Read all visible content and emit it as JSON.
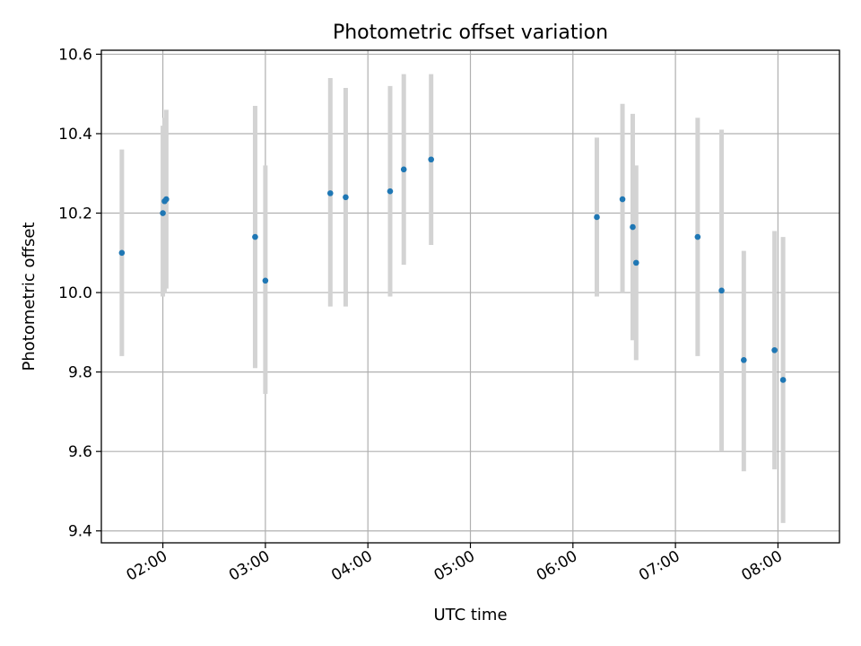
{
  "chart_data": {
    "type": "scatter",
    "title": "Photometric offset variation",
    "xlabel": "UTC time",
    "ylabel": "Photometric offset",
    "x_unit": "UTC time (HH:MM)",
    "xlim": [
      "01:24",
      "08:36"
    ],
    "ylim": [
      9.37,
      10.61
    ],
    "grid": true,
    "error_bars": true,
    "errorbar_color": "#d3d3d3",
    "point_color": "#1f77b4",
    "x_ticks": [
      "02:00",
      "03:00",
      "04:00",
      "05:00",
      "06:00",
      "07:00",
      "08:00"
    ],
    "y_ticks": [
      "9.4",
      "9.6",
      "9.8",
      "10.0",
      "10.2",
      "10.4",
      "10.6"
    ],
    "points": [
      {
        "x": "01:36",
        "y": 10.1,
        "ylo": 9.84,
        "yhi": 10.36
      },
      {
        "x": "02:00",
        "y": 10.2,
        "ylo": 9.99,
        "yhi": 10.42
      },
      {
        "x": "02:01",
        "y": 10.23,
        "ylo": 10.0,
        "yhi": 10.44
      },
      {
        "x": "02:02",
        "y": 10.235,
        "ylo": 10.01,
        "yhi": 10.46
      },
      {
        "x": "02:54",
        "y": 10.14,
        "ylo": 9.81,
        "yhi": 10.47
      },
      {
        "x": "03:00",
        "y": 10.03,
        "ylo": 9.745,
        "yhi": 10.32
      },
      {
        "x": "03:38",
        "y": 10.25,
        "ylo": 9.965,
        "yhi": 10.54
      },
      {
        "x": "03:47",
        "y": 10.24,
        "ylo": 9.965,
        "yhi": 10.515
      },
      {
        "x": "04:13",
        "y": 10.255,
        "ylo": 9.99,
        "yhi": 10.52
      },
      {
        "x": "04:21",
        "y": 10.31,
        "ylo": 10.07,
        "yhi": 10.55
      },
      {
        "x": "04:37",
        "y": 10.335,
        "ylo": 10.12,
        "yhi": 10.55
      },
      {
        "x": "06:14",
        "y": 10.19,
        "ylo": 9.99,
        "yhi": 10.39
      },
      {
        "x": "06:29",
        "y": 10.235,
        "ylo": 10.0,
        "yhi": 10.475
      },
      {
        "x": "06:35",
        "y": 10.165,
        "ylo": 9.88,
        "yhi": 10.45
      },
      {
        "x": "06:37",
        "y": 10.075,
        "ylo": 9.83,
        "yhi": 10.32
      },
      {
        "x": "07:13",
        "y": 10.14,
        "ylo": 9.84,
        "yhi": 10.44
      },
      {
        "x": "07:27",
        "y": 10.005,
        "ylo": 9.6,
        "yhi": 10.41
      },
      {
        "x": "07:40",
        "y": 9.83,
        "ylo": 9.55,
        "yhi": 10.105
      },
      {
        "x": "07:58",
        "y": 9.855,
        "ylo": 9.555,
        "yhi": 10.155
      },
      {
        "x": "08:03",
        "y": 9.78,
        "ylo": 9.42,
        "yhi": 10.14
      }
    ]
  }
}
